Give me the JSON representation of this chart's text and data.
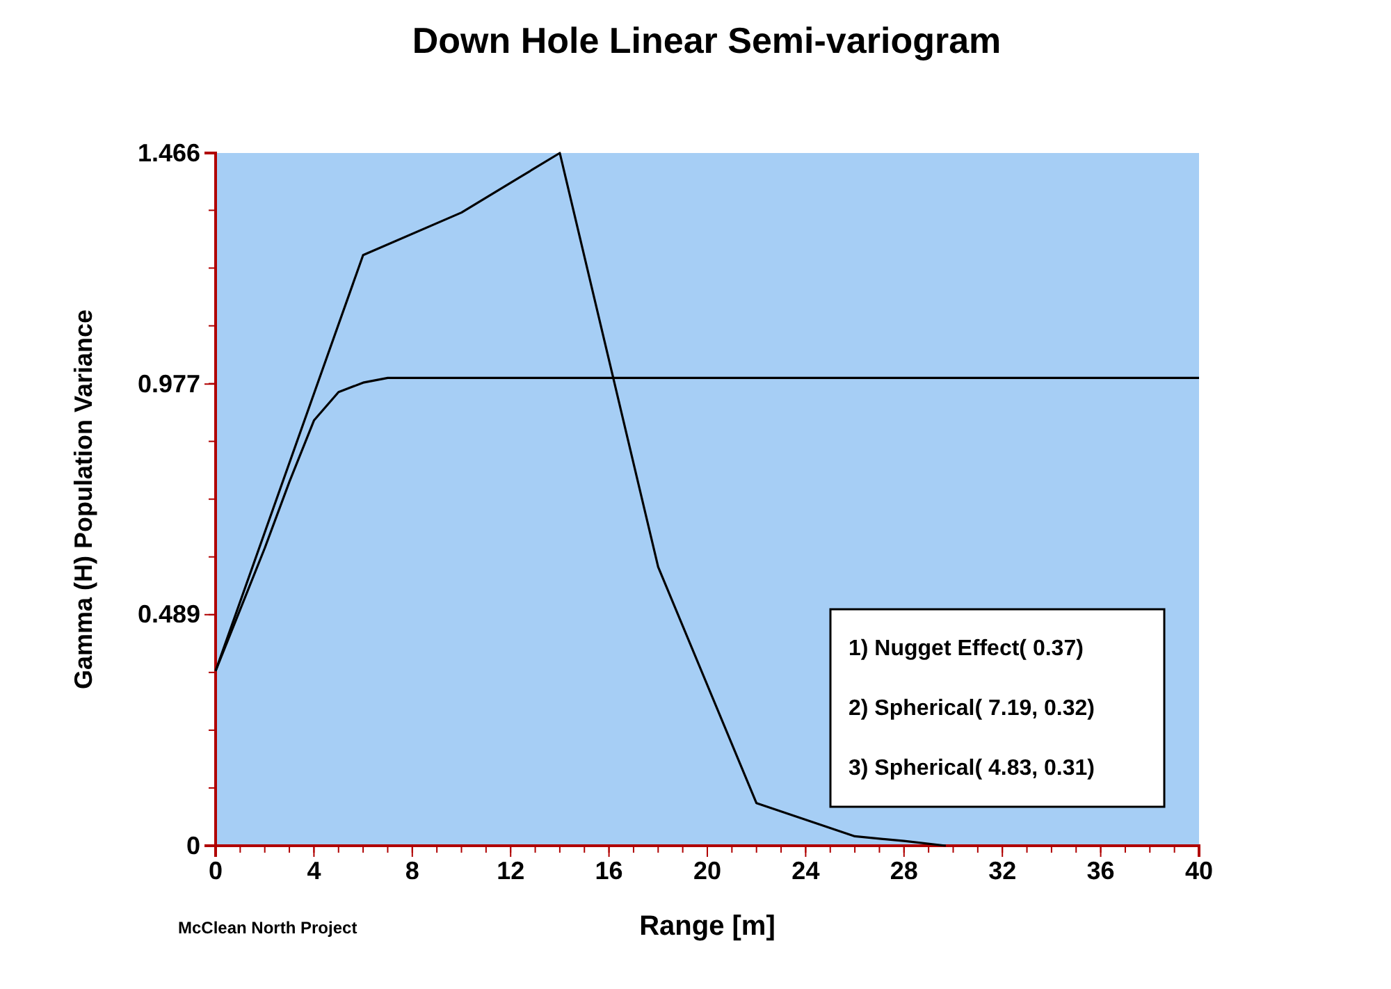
{
  "chart_data": {
    "type": "line",
    "title": "Down Hole Linear Semi-variogram",
    "xlabel": "Range [m]",
    "ylabel": "Gamma (H) Population Variance",
    "xlim": [
      0,
      40
    ],
    "xticks": [
      0,
      4,
      8,
      12,
      16,
      20,
      24,
      28,
      32,
      36,
      40
    ],
    "ylim": [
      0,
      1.466
    ],
    "yticks": [
      0,
      0.489,
      0.977,
      1.466
    ],
    "grid": false,
    "line_style": "solid",
    "series": [
      {
        "color": "#000000",
        "x": [
          0,
          6,
          10,
          14,
          18,
          22,
          26,
          28,
          29.7
        ],
        "values": [
          0.37,
          1.25,
          1.34,
          1.466,
          0.59,
          0.09,
          0.02,
          0.01,
          0
        ]
      },
      {
        "color": "#000000",
        "x": [
          0,
          1,
          2,
          3,
          4,
          5,
          6,
          7,
          40
        ],
        "values": [
          0.37,
          0.5,
          0.63,
          0.77,
          0.9,
          0.96,
          0.98,
          0.99,
          0.99
        ]
      }
    ],
    "annotations": [
      "1) Nugget Effect( 0.37)",
      "2) Spherical( 7.19, 0.32)",
      "3) Spherical( 4.83, 0.31)",
      "McClean North Project"
    ]
  }
}
